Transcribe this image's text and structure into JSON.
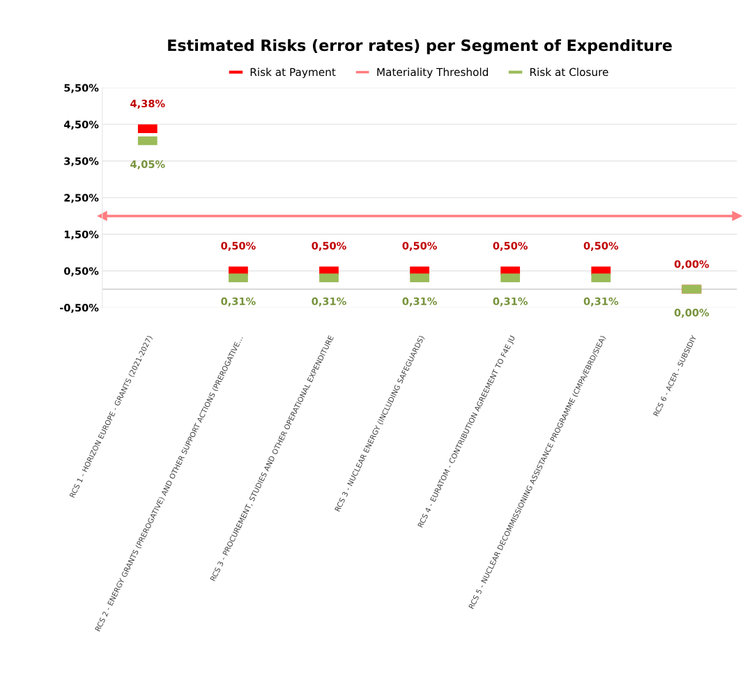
{
  "chart_data": {
    "type": "scatter",
    "title": "Estimated Risks (error rates) per Segment of Expenditure",
    "categories": [
      "RCS 1 - HORIZON EUROPE - GRANTS (2021-2027)",
      "RCS 2 - ENERGY GRANTS (PREROGATIVE) AND OTHER SUPPORT ACTIONS (PREROGATIVE…",
      "RCS 3 - PROCUREMENT, STUDIES AND OTHER OPERATIONAL EXPENDITURE",
      "RCS 3 - NUCLEAR ENERGY (INCLUDING SAFEGUARDS)",
      "RCS 4 - EURATOM - CONTRIBUTION AGREEMENT TO F4E JU",
      "RCS 5 - NUCLEAR DECOMMISSIONING ASSISTANCE PROGRAMME (CMPA/EBRD/SIEA)",
      "RCS 6 - ACER - SUBSIDIY"
    ],
    "series": [
      {
        "name": "Risk at Payment",
        "color": "#ff0000",
        "values": [
          4.38,
          0.5,
          0.5,
          0.5,
          0.5,
          0.5,
          0.0
        ],
        "value_labels": [
          "4,38%",
          "0,50%",
          "0,50%",
          "0,50%",
          "0,50%",
          "0,50%",
          "0,00%"
        ]
      },
      {
        "name": "Risk at Closure",
        "color": "#9bbb59",
        "values": [
          4.05,
          0.31,
          0.31,
          0.31,
          0.31,
          0.31,
          0.0
        ],
        "value_labels": [
          "4,05%",
          "0,31%",
          "0,31%",
          "0,31%",
          "0,31%",
          "0,31%",
          "0,00%"
        ]
      }
    ],
    "ref_lines": [
      {
        "axis": "y",
        "value": 2,
        "label": "Materiality Threshold",
        "color": "#ff7c80"
      },
      {
        "axis": "y",
        "value": 0,
        "color": "#d9d9d9"
      }
    ],
    "ylim": [
      -0.5,
      5.5
    ],
    "yticks": [
      {
        "value": -0.5,
        "label": "-0,50%"
      },
      {
        "value": 0.5,
        "label": "0,50%"
      },
      {
        "value": 1.5,
        "label": "1,50%"
      },
      {
        "value": 2.5,
        "label": "2,50%"
      },
      {
        "value": 3.5,
        "label": "3,50%"
      },
      {
        "value": 4.5,
        "label": "4,50%"
      },
      {
        "value": 5.5,
        "label": "5,50%"
      }
    ],
    "grid": "y",
    "legend": "top"
  }
}
